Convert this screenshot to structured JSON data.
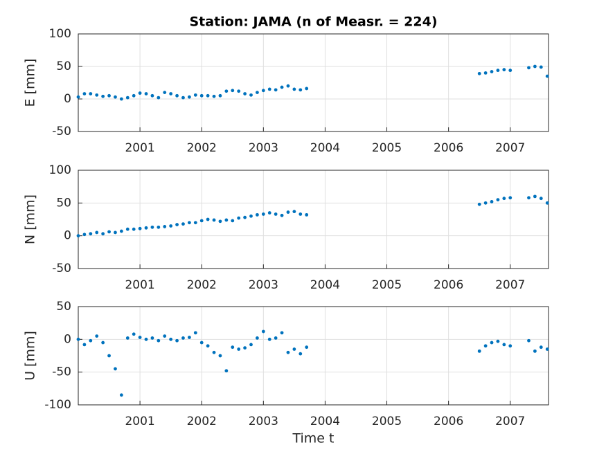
{
  "chart_data": [
    {
      "type": "scatter",
      "title": "Station: JAMA (n of Measr. = 224)",
      "ylabel": "E [mm]",
      "color": "#0072bd",
      "grid": true,
      "xlim": [
        2000.0,
        2007.62
      ],
      "xticks": [
        2001,
        2002,
        2003,
        2004,
        2005,
        2006,
        2007
      ],
      "ylim": [
        -50,
        100
      ],
      "yticks": [
        -50,
        0,
        50,
        100
      ],
      "x": [
        2000.0,
        2000.1,
        2000.2,
        2000.3,
        2000.4,
        2000.5,
        2000.6,
        2000.7,
        2000.8,
        2000.9,
        2001.0,
        2001.1,
        2001.2,
        2001.3,
        2001.4,
        2001.5,
        2001.6,
        2001.7,
        2001.8,
        2001.9,
        2002.0,
        2002.1,
        2002.2,
        2002.3,
        2002.4,
        2002.5,
        2002.6,
        2002.7,
        2002.8,
        2002.9,
        2003.0,
        2003.1,
        2003.2,
        2003.3,
        2003.4,
        2003.5,
        2003.6,
        2003.7,
        2006.5,
        2006.6,
        2006.7,
        2006.8,
        2006.9,
        2007.0,
        2007.3,
        2007.4,
        2007.5,
        2007.6
      ],
      "values": [
        3,
        8,
        8,
        6,
        4,
        5,
        3,
        0,
        2,
        5,
        9,
        8,
        5,
        2,
        10,
        8,
        5,
        2,
        3,
        6,
        5,
        5,
        4,
        5,
        12,
        13,
        12,
        8,
        6,
        10,
        13,
        15,
        14,
        18,
        20,
        15,
        14,
        16,
        39,
        40,
        42,
        44,
        45,
        44,
        48,
        50,
        49,
        35
      ]
    },
    {
      "type": "scatter",
      "ylabel": "N [mm]",
      "color": "#0072bd",
      "grid": true,
      "xlim": [
        2000.0,
        2007.62
      ],
      "xticks": [
        2001,
        2002,
        2003,
        2004,
        2005,
        2006,
        2007
      ],
      "ylim": [
        -50,
        100
      ],
      "yticks": [
        -50,
        0,
        50,
        100
      ],
      "x": [
        2000.0,
        2000.1,
        2000.2,
        2000.3,
        2000.4,
        2000.5,
        2000.6,
        2000.7,
        2000.8,
        2000.9,
        2001.0,
        2001.1,
        2001.2,
        2001.3,
        2001.4,
        2001.5,
        2001.6,
        2001.7,
        2001.8,
        2001.9,
        2002.0,
        2002.1,
        2002.2,
        2002.3,
        2002.4,
        2002.5,
        2002.6,
        2002.7,
        2002.8,
        2002.9,
        2003.0,
        2003.1,
        2003.2,
        2003.3,
        2003.4,
        2003.5,
        2003.6,
        2003.7,
        2006.5,
        2006.6,
        2006.7,
        2006.8,
        2006.9,
        2007.0,
        2007.3,
        2007.4,
        2007.5,
        2007.6
      ],
      "values": [
        0,
        2,
        3,
        5,
        3,
        6,
        5,
        7,
        10,
        10,
        11,
        12,
        13,
        13,
        14,
        15,
        17,
        18,
        20,
        20,
        23,
        25,
        24,
        22,
        24,
        23,
        27,
        28,
        30,
        32,
        33,
        35,
        33,
        31,
        36,
        37,
        33,
        32,
        48,
        50,
        52,
        55,
        57,
        58,
        58,
        60,
        57,
        50
      ]
    },
    {
      "type": "scatter",
      "ylabel": "U [mm]",
      "xlabel": "Time t",
      "color": "#0072bd",
      "grid": true,
      "xlim": [
        2000.0,
        2007.62
      ],
      "xticks": [
        2001,
        2002,
        2003,
        2004,
        2005,
        2006,
        2007
      ],
      "ylim": [
        -100,
        50
      ],
      "yticks": [
        -100,
        -50,
        0,
        50
      ],
      "x": [
        2000.0,
        2000.1,
        2000.2,
        2000.3,
        2000.4,
        2000.5,
        2000.6,
        2000.7,
        2000.8,
        2000.9,
        2001.0,
        2001.1,
        2001.2,
        2001.3,
        2001.4,
        2001.5,
        2001.6,
        2001.7,
        2001.8,
        2001.9,
        2002.0,
        2002.1,
        2002.2,
        2002.3,
        2002.4,
        2002.5,
        2002.6,
        2002.7,
        2002.8,
        2002.9,
        2003.0,
        2003.1,
        2003.2,
        2003.3,
        2003.4,
        2003.5,
        2003.6,
        2003.7,
        2006.5,
        2006.6,
        2006.7,
        2006.8,
        2006.9,
        2007.0,
        2007.3,
        2007.4,
        2007.5,
        2007.6
      ],
      "values": [
        0,
        -8,
        -2,
        5,
        -5,
        -25,
        -45,
        -85,
        2,
        8,
        3,
        0,
        2,
        -2,
        5,
        0,
        -2,
        2,
        3,
        10,
        -5,
        -10,
        -20,
        -25,
        -48,
        -12,
        -15,
        -13,
        -8,
        2,
        12,
        0,
        2,
        10,
        -20,
        -15,
        -22,
        -12,
        -18,
        -10,
        -5,
        -3,
        -8,
        -10,
        -2,
        -18,
        -12,
        -15
      ]
    }
  ]
}
